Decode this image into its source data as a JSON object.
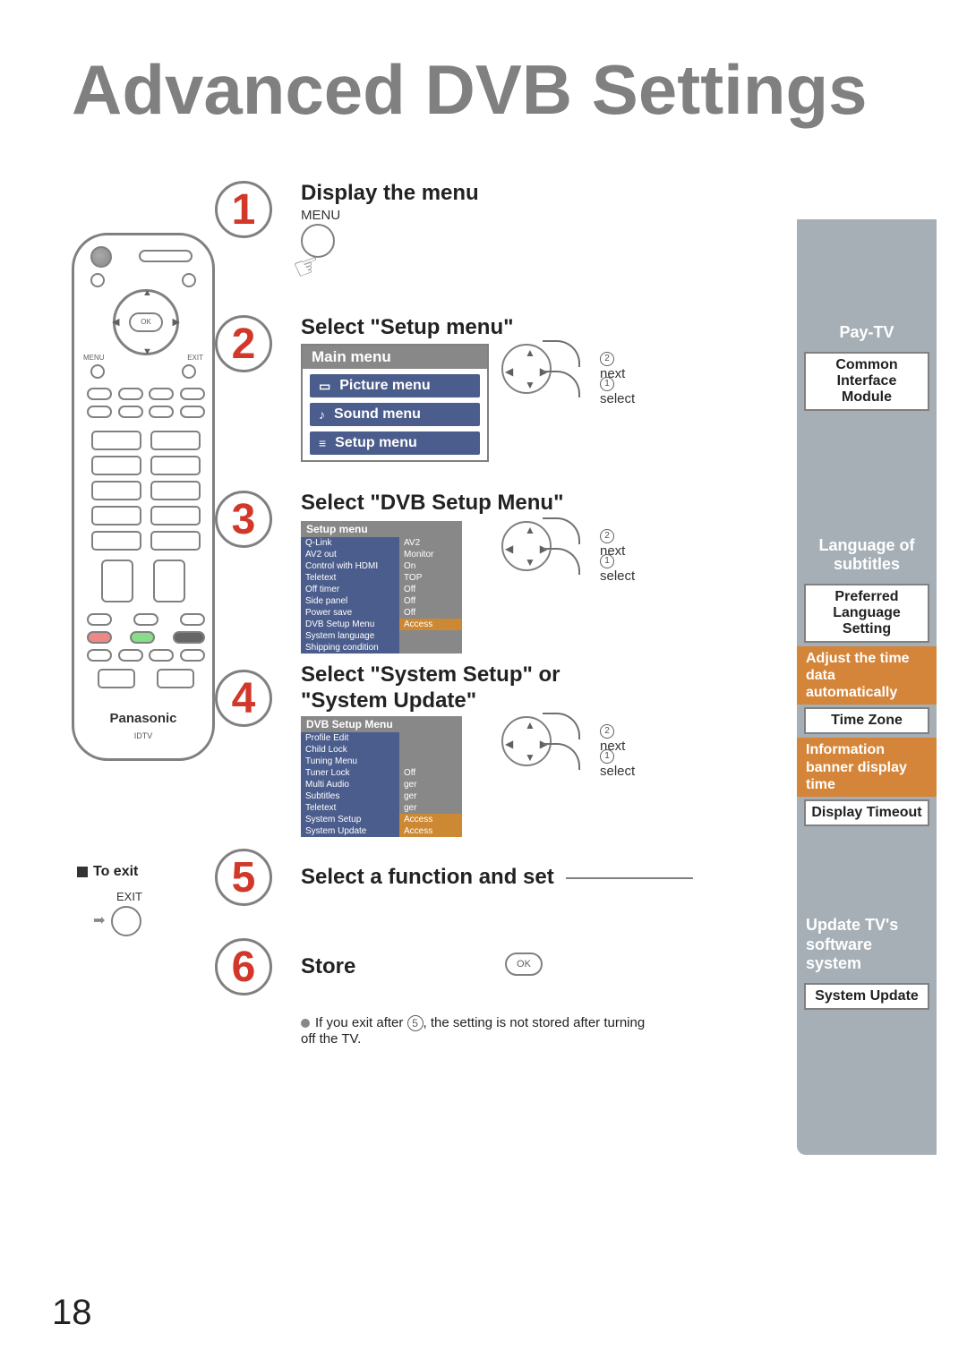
{
  "page_title": "Advanced DVB Settings",
  "page_number": "18",
  "remote": {
    "ok_label": "OK",
    "menu_label": "MENU",
    "exit_label": "EXIT",
    "brand": "Panasonic",
    "subbrand": "IDTV"
  },
  "steps": {
    "s1_num": "1",
    "s1_title": "Display the menu",
    "s1_sub": "MENU",
    "s2_num": "2",
    "s2_title": "Select \"Setup menu\"",
    "s3_num": "3",
    "s3_title": "Select \"DVB Setup Menu\"",
    "s4_num": "4",
    "s4_title": "Select \"System Setup\" or \"System Update\"",
    "s5_num": "5",
    "s5_title": "Select a function and set",
    "s6_num": "6",
    "s6_title": "Store"
  },
  "nav_hint": {
    "next": "next",
    "select": "select",
    "c1": "1",
    "c2": "2"
  },
  "main_menu": {
    "title": "Main menu",
    "items": [
      "Picture menu",
      "Sound menu",
      "Setup menu"
    ],
    "icons": [
      "▭",
      "♪",
      "≡"
    ]
  },
  "setup_menu": {
    "title": "Setup menu",
    "rows": [
      {
        "l": "Q-Link",
        "r": "AV2"
      },
      {
        "l": "AV2 out",
        "r": "Monitor"
      },
      {
        "l": "Control with HDMI",
        "r": "On"
      },
      {
        "l": "Teletext",
        "r": "TOP"
      },
      {
        "l": "Off timer",
        "r": "Off"
      },
      {
        "l": "Side panel",
        "r": "Off"
      },
      {
        "l": "Power save",
        "r": "Off"
      },
      {
        "l": "DVB Setup Menu",
        "r": "Access",
        "hl": true
      },
      {
        "l": "System language",
        "r": ""
      },
      {
        "l": "Shipping condition",
        "r": ""
      }
    ]
  },
  "dvb_menu": {
    "title": "DVB Setup Menu",
    "rows": [
      {
        "l": "Profile Edit",
        "r": ""
      },
      {
        "l": "Child Lock",
        "r": ""
      },
      {
        "l": "Tuning Menu",
        "r": ""
      },
      {
        "l": "Tuner Lock",
        "r": "Off"
      },
      {
        "l": "Multi Audio",
        "r": "ger"
      },
      {
        "l": "Subtitles",
        "r": "ger"
      },
      {
        "l": "Teletext",
        "r": "ger"
      },
      {
        "l": "System Setup",
        "r": "Access",
        "hl": true
      },
      {
        "l": "System Update",
        "r": "Access",
        "hl": true
      }
    ]
  },
  "exit": {
    "to_exit": "To exit",
    "label": "EXIT"
  },
  "ok_label": "OK",
  "note": {
    "prefix": "If you exit after ",
    "ref": "5",
    "suffix": ", the setting is not stored after turning off the TV."
  },
  "sidebar": {
    "sec1_title": "Pay-TV",
    "sec1_box": "Common Interface Module",
    "sec2_title": "Language of subtitles",
    "sec2_box": "Preferred Language Setting",
    "sec3_title": "Adjust the time data automatically",
    "sec3_box": "Time Zone",
    "sec4_title": "Information banner display time",
    "sec4_box": "Display Timeout",
    "sec5_title": "Update TV's software system",
    "sec5_box": "System Update"
  }
}
